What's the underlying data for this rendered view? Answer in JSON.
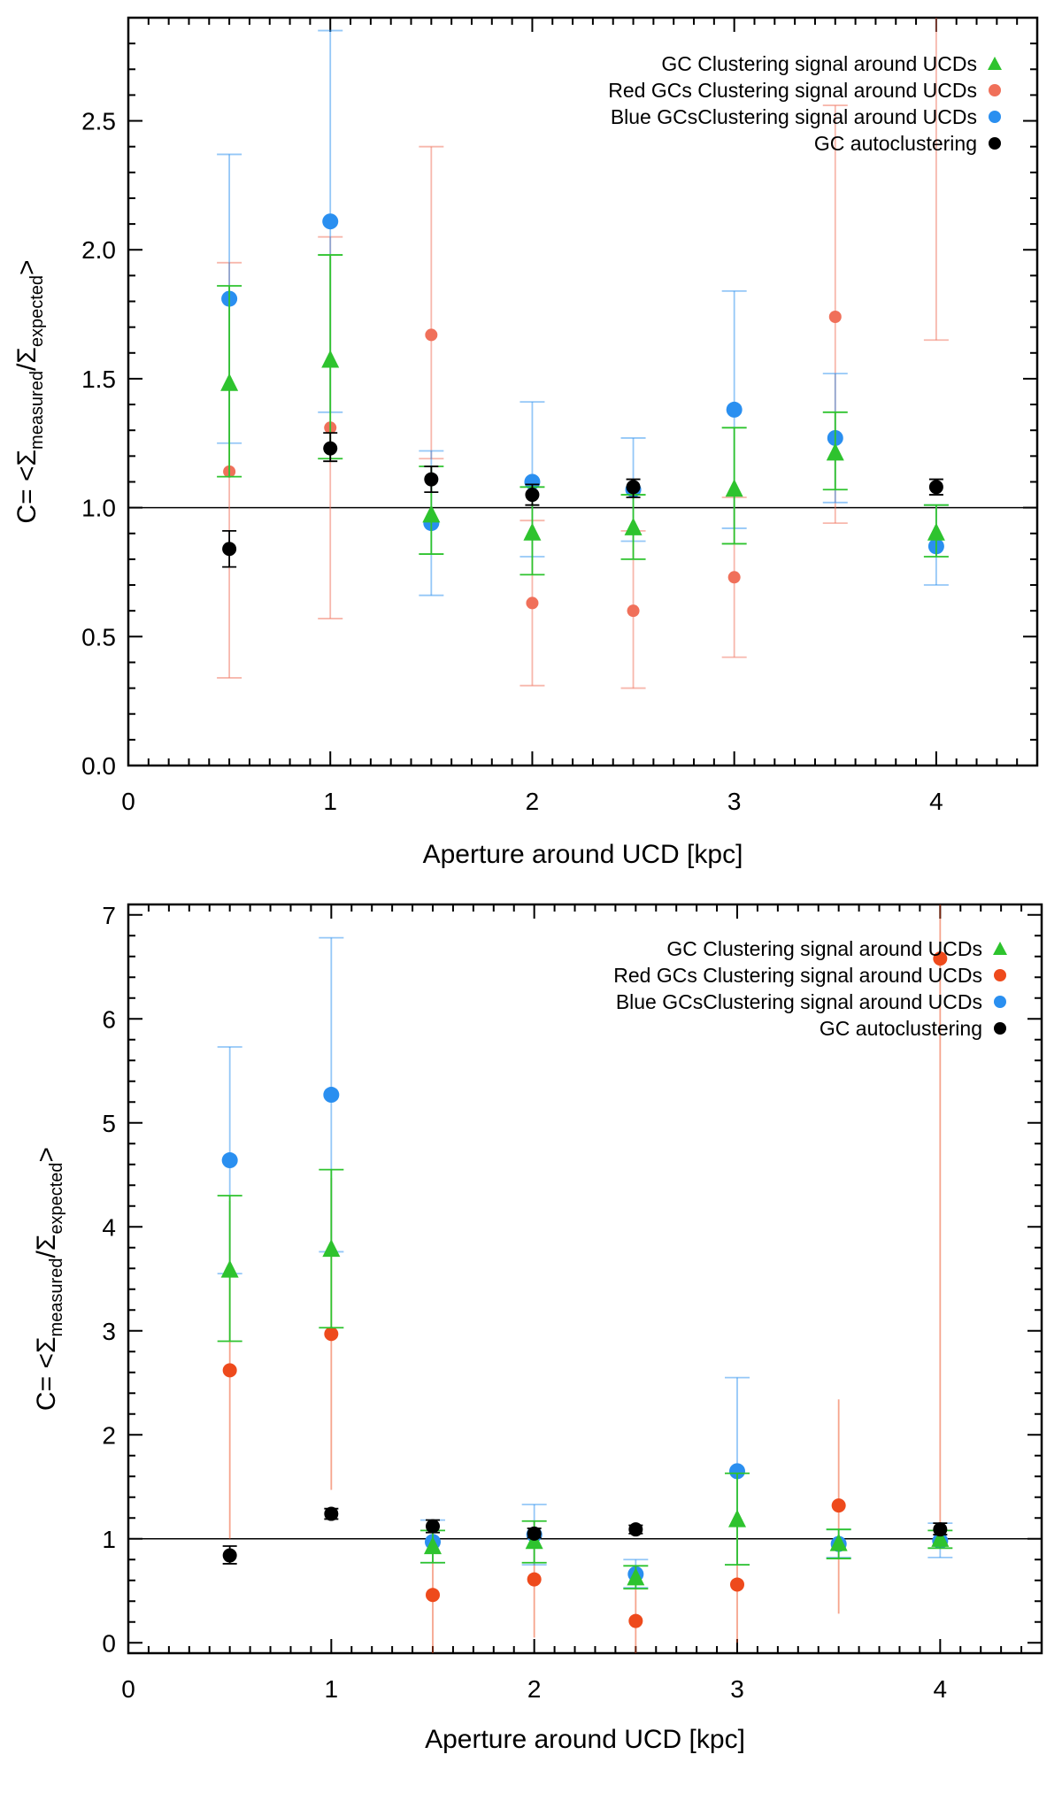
{
  "colors": {
    "gc": "#2ec32e",
    "red_top": "#f0705a",
    "red_bottom": "#ee4a1c",
    "blue": "#2a8ff0",
    "black": "#000000",
    "axis": "#000000"
  },
  "chart_data": [
    {
      "type": "scatter",
      "xlabel": "Aperture around UCD [kpc]",
      "ylabel_prefix": "C=  <Σ",
      "ylabel_sub1": "measured",
      "ylabel_mid": "/Σ",
      "ylabel_sub2": "expected",
      "ylabel_suffix": ">",
      "xlim": [
        0,
        4.5
      ],
      "ylim": [
        0,
        2.9
      ],
      "xticks": [
        0,
        1,
        2,
        3,
        4
      ],
      "xtick_labels": [
        "0",
        "1",
        "2",
        "3",
        "4"
      ],
      "yticks": [
        0,
        0.5,
        1,
        1.5,
        2,
        2.5
      ],
      "ytick_labels": [
        "0.0",
        "0.5",
        "1.0",
        "1.5",
        "2.0",
        "2.5"
      ],
      "reference_line": 1.0,
      "legend_position": "top-right",
      "series": [
        {
          "name": "GC Clustering signal around UCDs",
          "marker": "triangle",
          "color_key": "gc",
          "errorbar_style": "caps",
          "x": [
            0.5,
            1.0,
            1.5,
            2.0,
            2.5,
            3.0,
            3.5,
            4.0
          ],
          "y": [
            1.48,
            1.57,
            0.97,
            0.9,
            0.92,
            1.07,
            1.21,
            0.9
          ],
          "err_low": [
            1.12,
            1.19,
            0.82,
            0.74,
            0.8,
            0.86,
            1.07,
            0.81
          ],
          "err_high": [
            1.86,
            1.98,
            1.16,
            1.08,
            1.05,
            1.31,
            1.37,
            1.01
          ]
        },
        {
          "name": "Red GCs Clustering signal around UCDs",
          "marker": "circle",
          "color_key": "red_top",
          "errorbar_style": "caps",
          "x": [
            0.5,
            1.0,
            1.5,
            2.0,
            2.5,
            3.0,
            3.5,
            4.0
          ],
          "y": [
            1.14,
            1.31,
            1.67,
            0.63,
            0.6,
            0.73,
            1.74,
            2.98
          ],
          "err_low": [
            0.34,
            0.57,
            1.19,
            0.31,
            0.3,
            0.42,
            0.94,
            1.65
          ],
          "err_high": [
            1.95,
            2.05,
            2.4,
            0.95,
            0.91,
            1.04,
            2.56,
            4.3
          ]
        },
        {
          "name": "Blue GCsClustering signal around UCDs",
          "marker": "circle",
          "color_key": "blue",
          "errorbar_style": "caps",
          "x": [
            0.5,
            1.0,
            1.5,
            2.0,
            2.5,
            3.0,
            3.5,
            4.0
          ],
          "y": [
            1.81,
            2.11,
            0.94,
            1.1,
            1.07,
            1.38,
            1.27,
            0.85
          ],
          "err_low": [
            1.25,
            1.37,
            0.66,
            0.81,
            0.87,
            0.92,
            1.02,
            0.7
          ],
          "err_high": [
            2.37,
            2.85,
            1.22,
            1.41,
            1.27,
            1.84,
            1.52,
            1.01
          ]
        },
        {
          "name": "GC autoclustering",
          "marker": "circle",
          "color_key": "black",
          "errorbar_style": "caps",
          "x": [
            0.5,
            1.0,
            1.5,
            2.0,
            2.5,
            4.0
          ],
          "y": [
            0.84,
            1.23,
            1.11,
            1.05,
            1.08,
            1.08
          ],
          "err_low": [
            0.77,
            1.18,
            1.06,
            1.01,
            1.04,
            1.05
          ],
          "err_high": [
            0.91,
            1.29,
            1.16,
            1.09,
            1.11,
            1.11
          ]
        }
      ]
    },
    {
      "type": "scatter",
      "xlabel": "Aperture around UCD [kpc]",
      "ylabel_prefix": "C=  <Σ",
      "ylabel_sub1": "measured",
      "ylabel_mid": "/Σ",
      "ylabel_sub2": "expected",
      "ylabel_suffix": ">",
      "xlim": [
        0,
        4.5
      ],
      "ylim": [
        -0.1,
        7.1
      ],
      "xticks": [
        0,
        1,
        2,
        3,
        4
      ],
      "xtick_labels": [
        "0",
        "1",
        "2",
        "3",
        "4"
      ],
      "yticks": [
        0,
        1,
        2,
        3,
        4,
        5,
        6,
        7
      ],
      "ytick_labels": [
        "0",
        "1",
        "2",
        "3",
        "4",
        "5",
        "6",
        "7"
      ],
      "reference_line": 1.0,
      "legend_position": "top-right",
      "series": [
        {
          "name": "GC Clustering signal around UCDs",
          "marker": "triangle",
          "color_key": "gc",
          "errorbar_style": "caps",
          "x": [
            0.5,
            1.0,
            1.5,
            2.0,
            2.5,
            3.0,
            3.5,
            4.0
          ],
          "y": [
            3.58,
            3.78,
            0.92,
            0.97,
            0.62,
            1.18,
            0.95,
            0.99
          ],
          "err_low": [
            2.9,
            3.03,
            0.77,
            0.77,
            0.52,
            0.75,
            0.81,
            0.91
          ],
          "err_high": [
            4.3,
            4.55,
            1.08,
            1.17,
            0.74,
            1.63,
            1.09,
            1.08
          ]
        },
        {
          "name": "Red GCs Clustering signal around UCDs",
          "marker": "circle",
          "color_key": "red_bottom",
          "errorbar_style": "plain",
          "x": [
            0.5,
            1.0,
            1.5,
            2.0,
            2.5,
            3.0,
            3.5,
            4.0
          ],
          "y": [
            2.62,
            2.97,
            0.46,
            0.61,
            0.21,
            0.56,
            1.32,
            6.58
          ],
          "err_low": [
            1.0,
            1.47,
            -0.1,
            0.05,
            -0.1,
            0.0,
            0.28,
            1.15
          ],
          "err_high": [
            4.25,
            4.47,
            1.01,
            1.17,
            0.52,
            1.12,
            2.34,
            7.1
          ]
        },
        {
          "name": "Blue GCsClustering signal around UCDs",
          "marker": "circle",
          "color_key": "blue",
          "errorbar_style": "caps",
          "x": [
            0.5,
            1.0,
            1.5,
            2.0,
            2.5,
            3.0,
            3.5,
            4.0
          ],
          "y": [
            4.64,
            5.27,
            0.97,
            1.04,
            0.66,
            1.65,
            0.95,
            0.98
          ],
          "err_low": [
            3.55,
            3.76,
            0.77,
            0.75,
            0.53,
            0.75,
            0.82,
            0.82
          ],
          "err_high": [
            5.73,
            6.78,
            1.18,
            1.33,
            0.8,
            2.55,
            1.09,
            1.15
          ]
        },
        {
          "name": "GC autoclustering",
          "marker": "circle",
          "color_key": "black",
          "errorbar_style": "caps",
          "x": [
            0.5,
            1.0,
            1.5,
            2.0,
            2.5,
            4.0
          ],
          "y": [
            0.84,
            1.24,
            1.12,
            1.05,
            1.09,
            1.09
          ],
          "err_low": [
            0.76,
            1.19,
            1.06,
            1.01,
            1.05,
            1.04
          ],
          "err_high": [
            0.93,
            1.29,
            1.18,
            1.1,
            1.13,
            1.15
          ]
        }
      ]
    }
  ]
}
